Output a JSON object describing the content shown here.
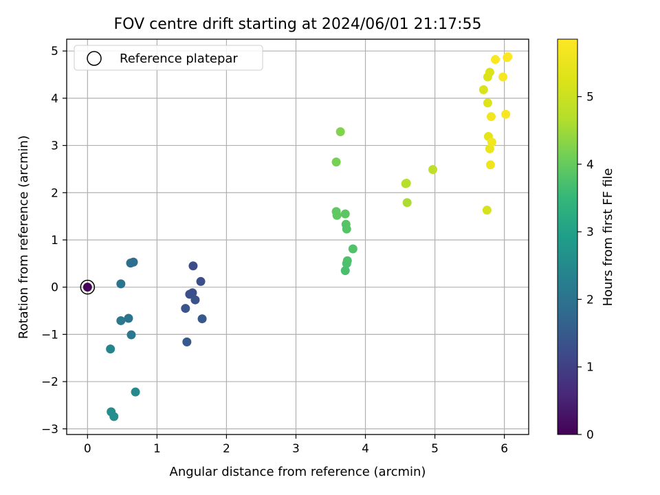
{
  "chart_data": {
    "type": "scatter",
    "title": "FOV centre drift starting at 2024/06/01 21:17:55",
    "xlabel": "Angular distance from reference (arcmin)",
    "ylabel": "Rotation from reference (arcmin)",
    "xlim": [
      -0.3,
      6.35
    ],
    "ylim": [
      -3.12,
      5.25
    ],
    "xticks": [
      0,
      1,
      2,
      3,
      4,
      5,
      6
    ],
    "yticks": [
      -3,
      -2,
      -1,
      0,
      1,
      2,
      3,
      4,
      5
    ],
    "grid": true,
    "legend": {
      "placement": "top-left",
      "entries": [
        "Reference platepar"
      ]
    },
    "reference_point": {
      "x": 0,
      "y": 0,
      "color_value": 0
    },
    "colorbar": {
      "label": "Hours from first FF file",
      "range": [
        0,
        5.85
      ],
      "ticks": [
        0,
        1,
        2,
        3,
        4,
        5
      ],
      "colormap": "viridis"
    },
    "points": [
      {
        "x": 0.0,
        "y": 0.0,
        "c": 0.05
      },
      {
        "x": 1.52,
        "y": 0.45,
        "c": 1.2
      },
      {
        "x": 1.63,
        "y": 0.12,
        "c": 1.3
      },
      {
        "x": 1.47,
        "y": -0.15,
        "c": 1.3
      },
      {
        "x": 1.51,
        "y": -0.12,
        "c": 1.3
      },
      {
        "x": 1.55,
        "y": -0.27,
        "c": 1.35
      },
      {
        "x": 1.41,
        "y": -0.45,
        "c": 1.4
      },
      {
        "x": 1.65,
        "y": -0.67,
        "c": 1.45
      },
      {
        "x": 1.43,
        "y": -1.16,
        "c": 1.5
      },
      {
        "x": 0.48,
        "y": 0.07,
        "c": 2.0
      },
      {
        "x": 0.62,
        "y": 0.51,
        "c": 1.9
      },
      {
        "x": 0.66,
        "y": 0.53,
        "c": 1.9
      },
      {
        "x": 0.59,
        "y": -0.66,
        "c": 2.0
      },
      {
        "x": 0.48,
        "y": -0.71,
        "c": 2.1
      },
      {
        "x": 0.63,
        "y": -1.01,
        "c": 2.1
      },
      {
        "x": 0.33,
        "y": -1.31,
        "c": 2.4
      },
      {
        "x": 0.69,
        "y": -2.22,
        "c": 2.5
      },
      {
        "x": 0.34,
        "y": -2.64,
        "c": 2.6
      },
      {
        "x": 0.38,
        "y": -2.74,
        "c": 2.6
      },
      {
        "x": 3.71,
        "y": 0.35,
        "c": 3.7
      },
      {
        "x": 3.73,
        "y": 0.5,
        "c": 3.75
      },
      {
        "x": 3.74,
        "y": 0.56,
        "c": 3.75
      },
      {
        "x": 3.82,
        "y": 0.81,
        "c": 3.8
      },
      {
        "x": 3.73,
        "y": 1.23,
        "c": 3.85
      },
      {
        "x": 3.72,
        "y": 1.33,
        "c": 3.85
      },
      {
        "x": 3.71,
        "y": 1.55,
        "c": 3.9
      },
      {
        "x": 3.59,
        "y": 1.52,
        "c": 3.95
      },
      {
        "x": 3.58,
        "y": 1.6,
        "c": 3.95
      },
      {
        "x": 3.58,
        "y": 2.65,
        "c": 4.15
      },
      {
        "x": 3.64,
        "y": 3.29,
        "c": 4.25
      },
      {
        "x": 4.6,
        "y": 1.79,
        "c": 4.6
      },
      {
        "x": 4.58,
        "y": 2.19,
        "c": 4.7
      },
      {
        "x": 4.59,
        "y": 2.2,
        "c": 4.7
      },
      {
        "x": 4.97,
        "y": 2.49,
        "c": 4.8
      },
      {
        "x": 5.75,
        "y": 1.63,
        "c": 5.15
      },
      {
        "x": 5.7,
        "y": 4.18,
        "c": 5.2
      },
      {
        "x": 5.76,
        "y": 3.9,
        "c": 5.3
      },
      {
        "x": 5.76,
        "y": 4.45,
        "c": 5.25
      },
      {
        "x": 5.79,
        "y": 4.55,
        "c": 5.25
      },
      {
        "x": 5.77,
        "y": 3.19,
        "c": 5.4
      },
      {
        "x": 5.79,
        "y": 2.93,
        "c": 5.5
      },
      {
        "x": 5.8,
        "y": 2.59,
        "c": 5.6
      },
      {
        "x": 5.82,
        "y": 3.07,
        "c": 5.65
      },
      {
        "x": 5.81,
        "y": 3.61,
        "c": 5.65
      },
      {
        "x": 6.02,
        "y": 3.66,
        "c": 5.75
      },
      {
        "x": 5.98,
        "y": 4.45,
        "c": 5.75
      },
      {
        "x": 5.87,
        "y": 4.82,
        "c": 5.8
      },
      {
        "x": 6.04,
        "y": 4.86,
        "c": 5.82
      },
      {
        "x": 6.05,
        "y": 4.88,
        "c": 5.85
      }
    ]
  }
}
